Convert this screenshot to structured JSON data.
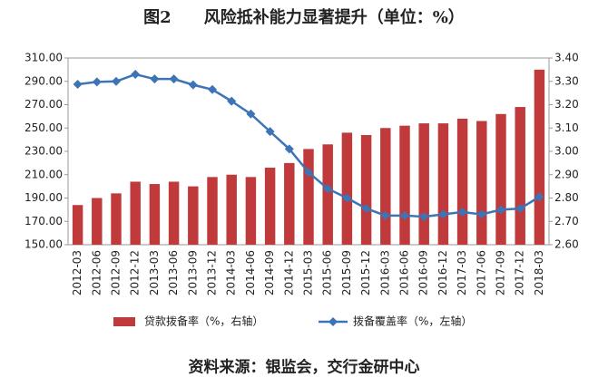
{
  "chart_data": {
    "type": "combo",
    "title": "图2　　风险抵补能力显著提升（单位：%）",
    "source": "资料来源：银监会，交行金研中心",
    "categories": [
      "2012-03",
      "2012-06",
      "2012-09",
      "2012-12",
      "2013-03",
      "2013-06",
      "2013-09",
      "2013-12",
      "2014-03",
      "2014-06",
      "2014-09",
      "2014-12",
      "2015-03",
      "2015-06",
      "2015-09",
      "2015-12",
      "2016-03",
      "2016-06",
      "2016-09",
      "2016-12",
      "2017-03",
      "2017-06",
      "2017-09",
      "2017-12",
      "2018-03"
    ],
    "series": [
      {
        "name": "贷款拨备率（%，右轴）",
        "type": "bar",
        "axis": "y2",
        "color": "#c0393b",
        "values": [
          2.77,
          2.8,
          2.82,
          2.87,
          2.86,
          2.87,
          2.85,
          2.89,
          2.9,
          2.89,
          2.93,
          2.95,
          3.01,
          3.03,
          3.08,
          3.07,
          3.1,
          3.11,
          3.12,
          3.12,
          3.14,
          3.13,
          3.16,
          3.19,
          3.35
        ]
      },
      {
        "name": "拨备覆盖率（%，左轴）",
        "type": "line",
        "axis": "y",
        "color": "#3d74b6",
        "values": [
          287.5,
          289.5,
          290,
          296,
          292,
          292,
          287,
          283,
          273,
          262,
          247,
          232,
          212,
          198,
          190,
          181,
          175,
          175,
          174,
          176,
          178,
          176,
          180,
          181,
          191
        ]
      }
    ],
    "ylim": [
      150,
      310
    ],
    "yticks": [
      {
        "value": 150,
        "label": "150.00"
      },
      {
        "value": 170,
        "label": "170.00"
      },
      {
        "value": 190,
        "label": "190.00"
      },
      {
        "value": 210,
        "label": "210.00"
      },
      {
        "value": 230,
        "label": "230.00"
      },
      {
        "value": 250,
        "label": "250.00"
      },
      {
        "value": 270,
        "label": "270.00"
      },
      {
        "value": 290,
        "label": "290.00"
      },
      {
        "value": 310,
        "label": "310.00"
      }
    ],
    "y2lim": [
      2.6,
      3.4
    ],
    "y2ticks": [
      {
        "value": 2.6,
        "label": "2.60"
      },
      {
        "value": 2.7,
        "label": "2.70"
      },
      {
        "value": 2.8,
        "label": "2.80"
      },
      {
        "value": 2.9,
        "label": "2.90"
      },
      {
        "value": 3.0,
        "label": "3.00"
      },
      {
        "value": 3.1,
        "label": "3.10"
      },
      {
        "value": 3.2,
        "label": "3.20"
      },
      {
        "value": 3.3,
        "label": "3.30"
      },
      {
        "value": 3.4,
        "label": "3.40"
      }
    ],
    "legend": "bottom"
  }
}
